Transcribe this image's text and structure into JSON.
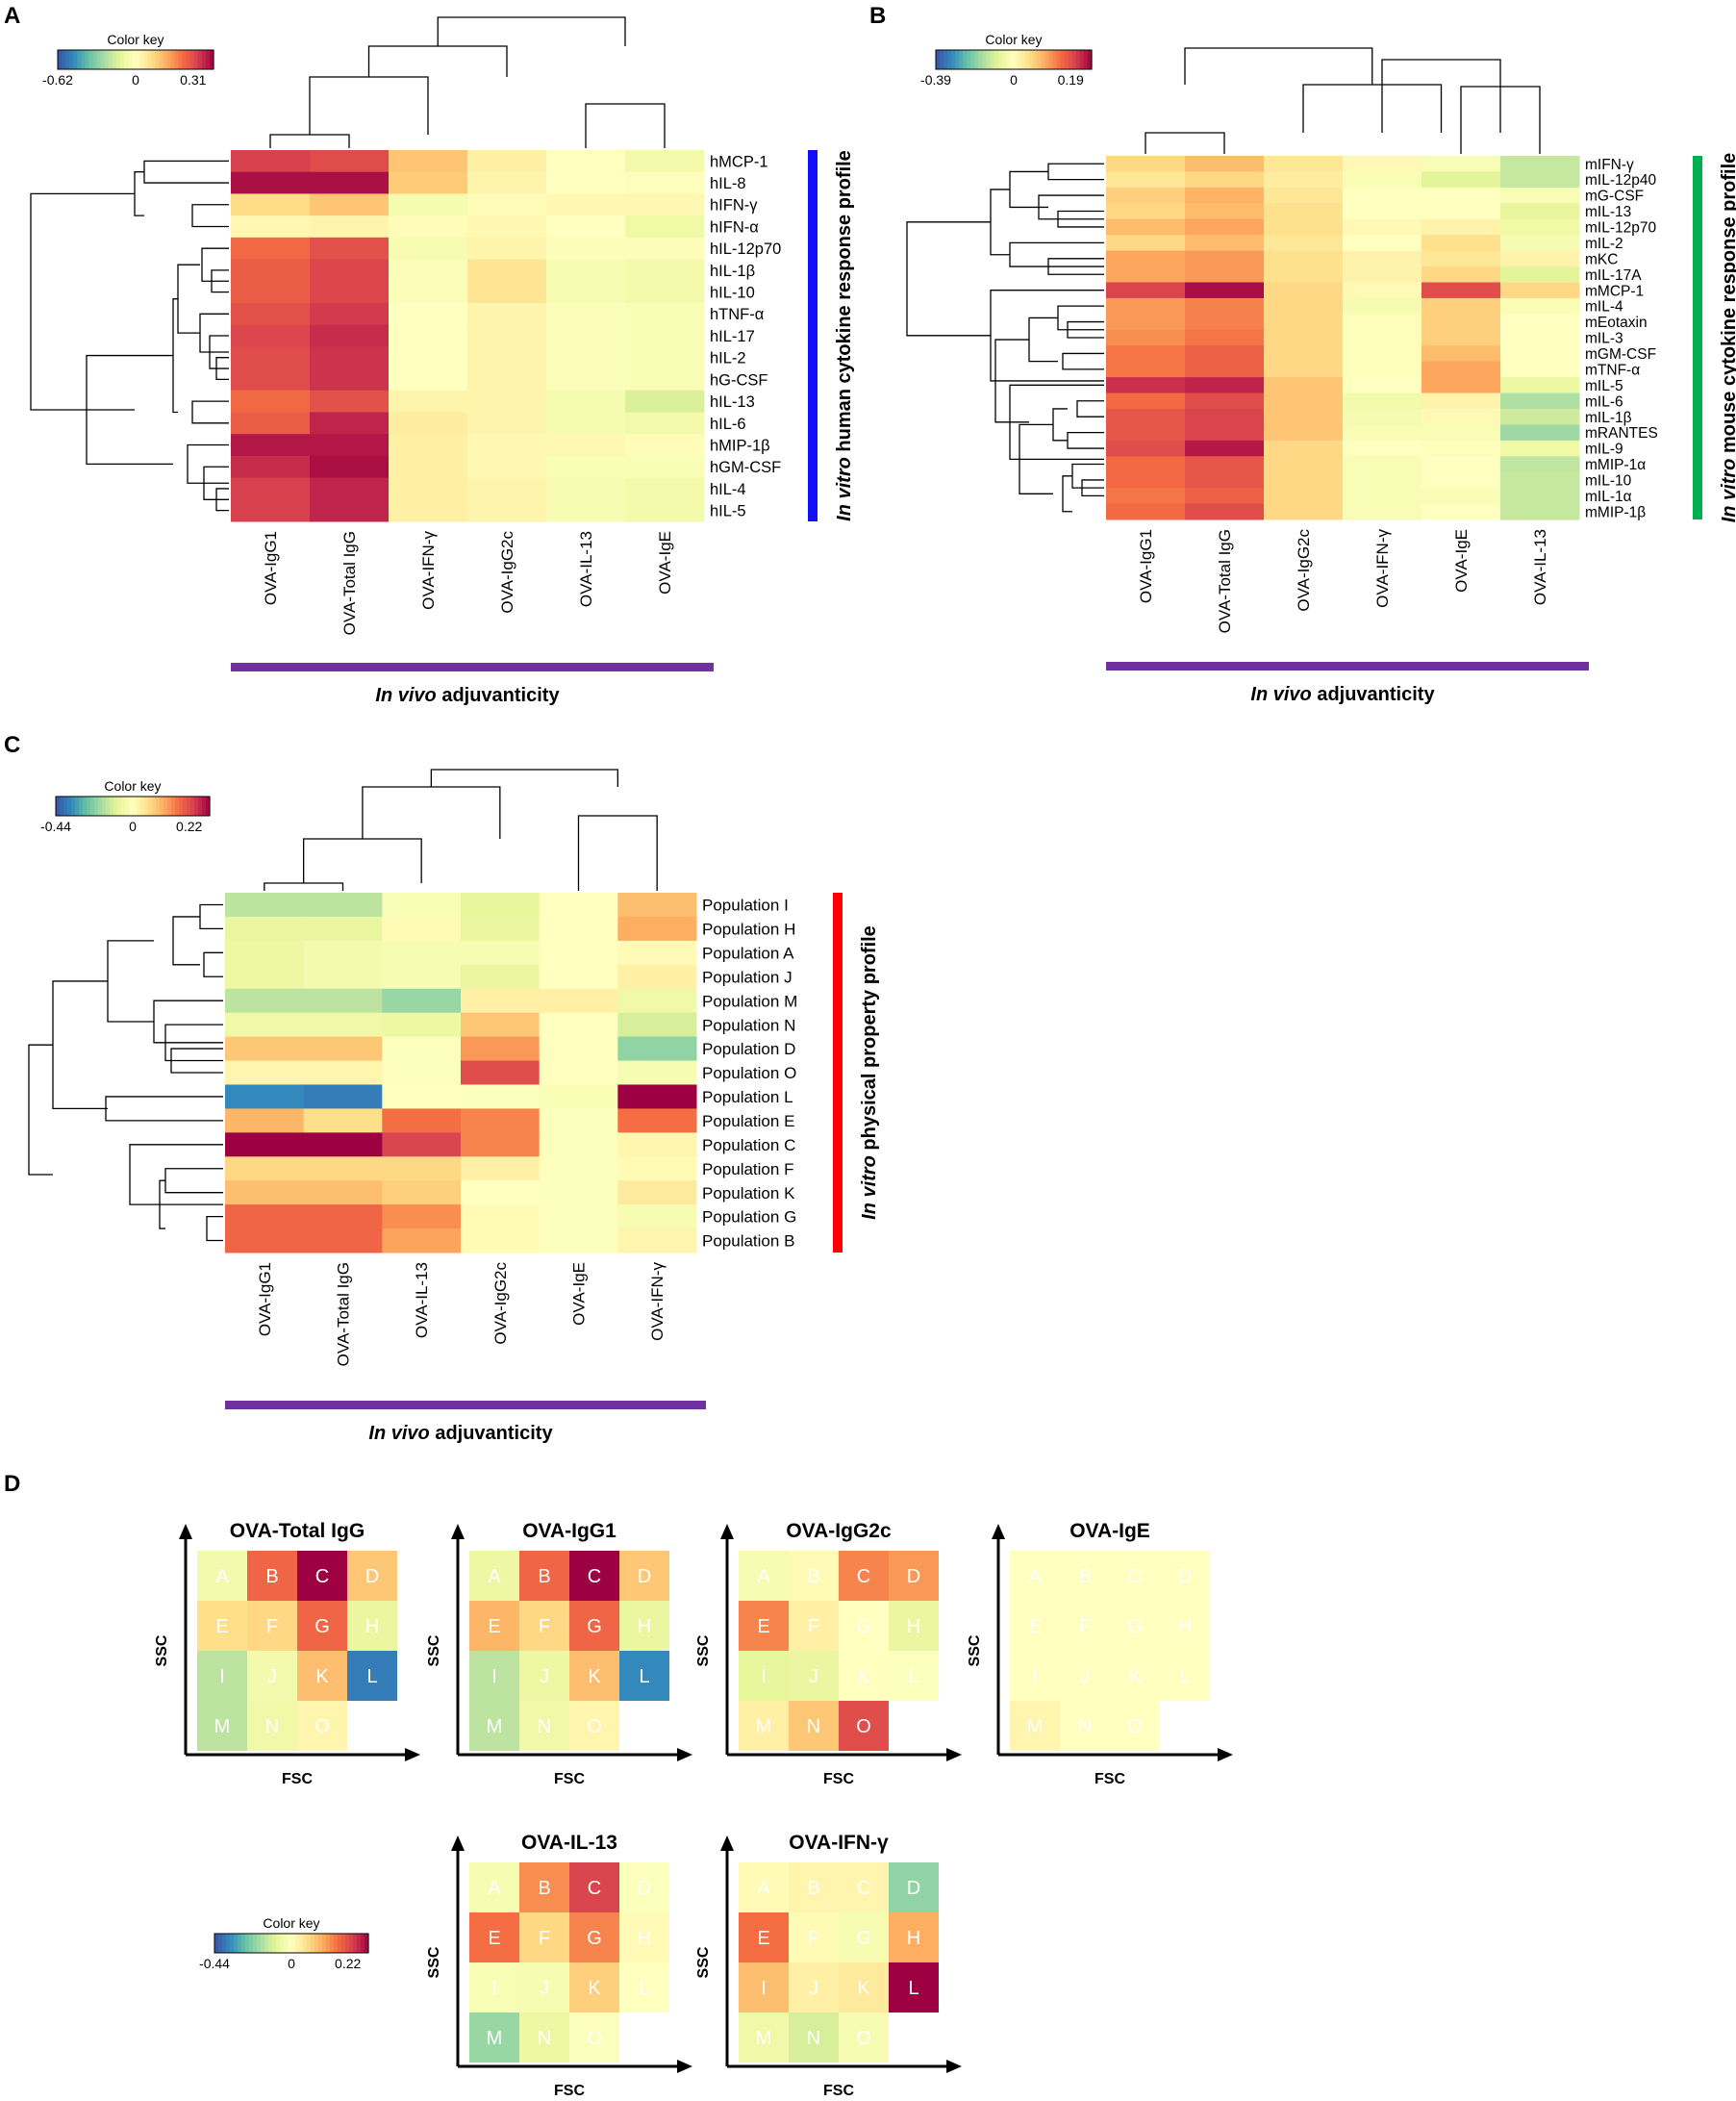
{
  "colors": {
    "scale": [
      "#3a54a4",
      "#3288bd",
      "#66c2a5",
      "#abdda4",
      "#e6f598",
      "#ffffbf",
      "#fee08b",
      "#fdae61",
      "#f46d43",
      "#d53e4f",
      "#9e0142"
    ],
    "bar_blue": "#1010ff",
    "bar_green": "#00b050",
    "bar_red": "#ff0000",
    "bar_purple": "#7030a0"
  },
  "chart_data": [
    {
      "id": "A",
      "type": "heatmap",
      "panel_label": "A",
      "color_key": {
        "title": "Color key",
        "min": -0.62,
        "max": 0.42,
        "tick_labels": [
          "-0.62",
          "0",
          "0.31"
        ],
        "tick_values": [
          -0.62,
          0,
          0.31
        ]
      },
      "columns": [
        "OVA-IgG1",
        "OVA-Total IgG",
        "OVA-IFN-γ",
        "OVA-IgG2c",
        "OVA-IL-13",
        "OVA-IgE"
      ],
      "rows": [
        "hMCP-1",
        "hIL-8",
        "hIFN-γ",
        "hIFN-α",
        "hIL-12p70",
        "hIL-1β",
        "hIL-10",
        "hTNF-α",
        "hIL-17",
        "hIL-2",
        "hG-CSF",
        "hIL-13",
        "hIL-6",
        "hMIP-1β",
        "hGM-CSF",
        "hIL-4",
        "hIL-5"
      ],
      "values": [
        [
          0.33,
          0.31,
          0.13,
          0.04,
          0.0,
          -0.06
        ],
        [
          0.4,
          0.4,
          0.12,
          0.03,
          0.0,
          -0.01
        ],
        [
          0.09,
          0.13,
          -0.05,
          0.01,
          0.02,
          0.02
        ],
        [
          0.02,
          0.03,
          0.01,
          0.02,
          0.0,
          -0.08
        ],
        [
          0.26,
          0.3,
          -0.04,
          0.03,
          -0.02,
          -0.02
        ],
        [
          0.28,
          0.32,
          -0.02,
          0.07,
          -0.04,
          -0.06
        ],
        [
          0.28,
          0.32,
          -0.02,
          0.07,
          -0.04,
          -0.06
        ],
        [
          0.3,
          0.34,
          0.0,
          0.03,
          -0.02,
          -0.03
        ],
        [
          0.32,
          0.36,
          0.0,
          0.03,
          -0.02,
          -0.03
        ],
        [
          0.31,
          0.35,
          0.0,
          0.03,
          -0.02,
          -0.03
        ],
        [
          0.31,
          0.35,
          0.0,
          0.03,
          -0.02,
          -0.03
        ],
        [
          0.26,
          0.3,
          0.03,
          0.03,
          -0.05,
          -0.15
        ],
        [
          0.28,
          0.37,
          0.05,
          0.03,
          -0.05,
          -0.06
        ],
        [
          0.39,
          0.39,
          0.04,
          0.02,
          0.02,
          0.01
        ],
        [
          0.36,
          0.4,
          0.04,
          0.02,
          -0.03,
          -0.03
        ],
        [
          0.33,
          0.37,
          0.04,
          0.03,
          -0.04,
          -0.06
        ],
        [
          0.33,
          0.37,
          0.04,
          0.03,
          -0.04,
          -0.06
        ]
      ],
      "side_title_italic": "In vitro",
      "side_title_rest": " human cytokine response profile",
      "bottom_title_italic": "In vivo",
      "bottom_title_rest": " adjuvanticity"
    },
    {
      "id": "B",
      "type": "heatmap",
      "panel_label": "B",
      "color_key": {
        "title": "Color key",
        "min": -0.39,
        "max": 0.26,
        "tick_labels": [
          "-0.39",
          "0",
          "0.19"
        ],
        "tick_values": [
          -0.39,
          0,
          0.19
        ]
      },
      "columns": [
        "OVA-IgG1",
        "OVA-Total IgG",
        "OVA-IgG2c",
        "OVA-IFN-γ",
        "OVA-IgE",
        "OVA-IL-13"
      ],
      "rows": [
        "mIFN-γ",
        "mIL-12p40",
        "mG-CSF",
        "mIL-13",
        "mIL-12p70",
        "mIL-2",
        "mKC",
        "mIL-17A",
        "mMCP-1",
        "mIL-4",
        "mEotaxin",
        "mIL-3",
        "mGM-CSF",
        "mTNF-α",
        "mIL-5",
        "mIL-6",
        "mIL-1β",
        "mRANTES",
        "mIL-9",
        "mMIP-1α",
        "mIL-10",
        "mIL-1α",
        "mMIP-1β"
      ],
      "values": [
        [
          0.06,
          0.09,
          0.04,
          0.01,
          -0.02,
          -0.12
        ],
        [
          0.04,
          0.06,
          0.03,
          -0.02,
          -0.08,
          -0.12
        ],
        [
          0.07,
          0.1,
          0.04,
          0.0,
          0.0,
          -0.02
        ],
        [
          0.06,
          0.09,
          0.05,
          0.0,
          0.0,
          -0.07
        ],
        [
          0.09,
          0.11,
          0.05,
          0.01,
          0.02,
          -0.05
        ],
        [
          0.06,
          0.09,
          0.04,
          0.0,
          0.05,
          -0.03
        ],
        [
          0.11,
          0.12,
          0.05,
          0.02,
          0.04,
          0.02
        ],
        [
          0.11,
          0.12,
          0.05,
          0.02,
          0.06,
          -0.08
        ],
        [
          0.2,
          0.25,
          0.06,
          0.01,
          0.19,
          0.06
        ],
        [
          0.12,
          0.14,
          0.06,
          -0.03,
          0.07,
          -0.02
        ],
        [
          0.12,
          0.14,
          0.06,
          -0.01,
          0.07,
          0.0
        ],
        [
          0.13,
          0.15,
          0.06,
          -0.01,
          0.07,
          0.0
        ],
        [
          0.15,
          0.17,
          0.06,
          -0.01,
          0.09,
          0.0
        ],
        [
          0.15,
          0.17,
          0.06,
          -0.01,
          0.11,
          0.0
        ],
        [
          0.22,
          0.23,
          0.08,
          0.0,
          0.11,
          -0.06
        ],
        [
          0.16,
          0.19,
          0.08,
          -0.04,
          0.02,
          -0.15
        ],
        [
          0.18,
          0.2,
          0.08,
          -0.03,
          0.01,
          -0.11
        ],
        [
          0.18,
          0.2,
          0.08,
          -0.02,
          -0.02,
          -0.17
        ],
        [
          0.19,
          0.24,
          0.06,
          0.0,
          -0.01,
          -0.05
        ],
        [
          0.16,
          0.18,
          0.06,
          -0.02,
          0.0,
          -0.13
        ],
        [
          0.16,
          0.18,
          0.06,
          -0.02,
          0.0,
          -0.12
        ],
        [
          0.15,
          0.17,
          0.06,
          -0.02,
          -0.02,
          -0.12
        ],
        [
          0.16,
          0.19,
          0.06,
          -0.02,
          0.0,
          -0.12
        ]
      ],
      "side_title_italic": "In vitro",
      "side_title_rest": " mouse cytokine response  profile",
      "bottom_title_italic": "In vivo",
      "bottom_title_rest": " adjuvanticity"
    },
    {
      "id": "C",
      "type": "heatmap",
      "panel_label": "C",
      "color_key": {
        "title": "Color key",
        "min": -0.44,
        "max": 0.3,
        "tick_labels": [
          "-0.44",
          "0",
          "0.22"
        ],
        "tick_values": [
          -0.44,
          0,
          0.22
        ]
      },
      "columns": [
        "OVA-IgG1",
        "OVA-Total IgG",
        "OVA-IL-13",
        "OVA-IgG2c",
        "OVA-IgE",
        "OVA-IFN-γ"
      ],
      "rows": [
        "Population I",
        "Population H",
        "Population A",
        "Population J",
        "Population M",
        "Population N",
        "Population D",
        "Population O",
        "Population L",
        "Population E",
        "Population C",
        "Population F",
        "Population K",
        "Population G",
        "Population B"
      ],
      "values": [
        [
          -0.15,
          -0.15,
          -0.02,
          -0.08,
          0.0,
          0.1
        ],
        [
          -0.07,
          -0.07,
          0.01,
          -0.07,
          0.0,
          0.12
        ],
        [
          -0.06,
          -0.04,
          -0.03,
          -0.03,
          0.0,
          0.01
        ],
        [
          -0.06,
          -0.04,
          -0.03,
          -0.07,
          0.0,
          0.03
        ],
        [
          -0.15,
          -0.15,
          -0.2,
          0.03,
          0.03,
          -0.05
        ],
        [
          -0.05,
          -0.05,
          -0.06,
          0.09,
          0.0,
          -0.11
        ],
        [
          0.09,
          0.09,
          -0.01,
          0.14,
          0.0,
          -0.21
        ],
        [
          0.02,
          0.02,
          -0.01,
          0.22,
          0.0,
          -0.03
        ],
        [
          -0.35,
          -0.37,
          0.0,
          -0.01,
          -0.02,
          0.3
        ],
        [
          0.11,
          0.06,
          0.18,
          0.16,
          -0.01,
          0.18
        ],
        [
          0.3,
          0.3,
          0.23,
          0.16,
          -0.01,
          0.02
        ],
        [
          0.07,
          0.07,
          0.07,
          0.03,
          -0.01,
          0.01
        ],
        [
          0.1,
          0.1,
          0.08,
          0.0,
          -0.01,
          0.04
        ],
        [
          0.19,
          0.19,
          0.15,
          0.01,
          -0.01,
          -0.03
        ],
        [
          0.19,
          0.19,
          0.13,
          0.01,
          -0.01,
          0.02
        ]
      ],
      "side_title_italic": "In vitro",
      "side_title_rest": " physical property  profile",
      "bottom_title_italic": "In vivo",
      "bottom_title_rest": " adjuvanticity"
    },
    {
      "id": "D",
      "type": "heatmap",
      "panel_label": "D",
      "color_key": {
        "title": "Color key",
        "min": -0.44,
        "max": 0.3,
        "tick_labels": [
          "-0.44",
          "0",
          "0.22"
        ],
        "tick_values": [
          -0.44,
          0,
          0.22
        ]
      },
      "x_axis_label": "FSC",
      "y_axis_label": "SSC",
      "letters": [
        [
          "A",
          "B",
          "C",
          "D"
        ],
        [
          "E",
          "F",
          "G",
          "H"
        ],
        [
          "I",
          "J",
          "K",
          "L"
        ],
        [
          "M",
          "N",
          "O",
          ""
        ]
      ],
      "grids": [
        {
          "title": "OVA-Total IgG",
          "values": [
            [
              -0.04,
              0.19,
              0.3,
              0.09
            ],
            [
              0.06,
              0.07,
              0.19,
              -0.07
            ],
            [
              -0.15,
              -0.04,
              0.1,
              -0.37
            ],
            [
              -0.15,
              -0.05,
              0.02,
              null
            ]
          ]
        },
        {
          "title": "OVA-IgG1",
          "values": [
            [
              -0.06,
              0.19,
              0.3,
              0.09
            ],
            [
              0.11,
              0.07,
              0.19,
              -0.07
            ],
            [
              -0.15,
              -0.06,
              0.1,
              -0.35
            ],
            [
              -0.15,
              -0.05,
              0.02,
              null
            ]
          ]
        },
        {
          "title": "OVA-IgG2c",
          "values": [
            [
              -0.03,
              0.01,
              0.16,
              0.14
            ],
            [
              0.16,
              0.03,
              0.0,
              -0.07
            ],
            [
              -0.08,
              -0.07,
              0.0,
              -0.01
            ],
            [
              0.03,
              0.09,
              0.22,
              null
            ]
          ]
        },
        {
          "title": "OVA-IgE",
          "values": [
            [
              0.0,
              0.0,
              0.0,
              0.0
            ],
            [
              0.0,
              0.0,
              0.0,
              0.0
            ],
            [
              0.0,
              0.0,
              0.0,
              0.0
            ],
            [
              0.02,
              0.0,
              0.0,
              null
            ]
          ]
        },
        {
          "title": "OVA-IL-13",
          "values": [
            [
              -0.03,
              0.15,
              0.23,
              -0.01
            ],
            [
              0.18,
              0.07,
              0.16,
              0.01
            ],
            [
              -0.02,
              -0.03,
              0.08,
              0.0
            ],
            [
              -0.2,
              -0.06,
              -0.01,
              null
            ]
          ]
        },
        {
          "title": "OVA-IFN-γ",
          "values": [
            [
              0.01,
              0.02,
              0.02,
              -0.21
            ],
            [
              0.18,
              0.01,
              -0.03,
              0.12
            ],
            [
              0.1,
              0.03,
              0.04,
              0.3
            ],
            [
              -0.05,
              -0.11,
              -0.03,
              null
            ]
          ]
        }
      ]
    }
  ]
}
